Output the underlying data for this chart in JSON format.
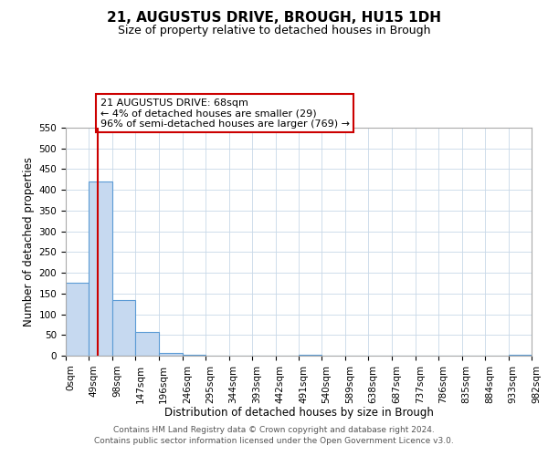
{
  "title": "21, AUGUSTUS DRIVE, BROUGH, HU15 1DH",
  "subtitle": "Size of property relative to detached houses in Brough",
  "xlabel": "Distribution of detached houses by size in Brough",
  "ylabel": "Number of detached properties",
  "bin_edges": [
    0,
    49,
    98,
    147,
    196,
    246,
    295,
    344,
    393,
    442,
    491,
    540,
    589,
    638,
    687,
    737,
    786,
    835,
    884,
    933,
    982
  ],
  "bin_labels": [
    "0sqm",
    "49sqm",
    "98sqm",
    "147sqm",
    "196sqm",
    "246sqm",
    "295sqm",
    "344sqm",
    "393sqm",
    "442sqm",
    "491sqm",
    "540sqm",
    "589sqm",
    "638sqm",
    "687sqm",
    "737sqm",
    "786sqm",
    "835sqm",
    "884sqm",
    "933sqm",
    "982sqm"
  ],
  "counts": [
    175,
    420,
    135,
    57,
    7,
    3,
    0,
    0,
    0,
    0,
    2,
    0,
    0,
    1,
    0,
    0,
    0,
    0,
    0,
    2
  ],
  "bar_color": "#c6d9f0",
  "bar_edge_color": "#5b9bd5",
  "property_line_x": 68,
  "property_line_color": "#cc0000",
  "ylim": [
    0,
    550
  ],
  "yticks": [
    0,
    50,
    100,
    150,
    200,
    250,
    300,
    350,
    400,
    450,
    500,
    550
  ],
  "annotation_title": "21 AUGUSTUS DRIVE: 68sqm",
  "annotation_line1": "← 4% of detached houses are smaller (29)",
  "annotation_line2": "96% of semi-detached houses are larger (769) →",
  "annotation_box_color": "#ffffff",
  "annotation_box_edge": "#cc0000",
  "footer_line1": "Contains HM Land Registry data © Crown copyright and database right 2024.",
  "footer_line2": "Contains public sector information licensed under the Open Government Licence v3.0.",
  "title_fontsize": 11,
  "subtitle_fontsize": 9,
  "axis_label_fontsize": 8.5,
  "tick_fontsize": 7.5,
  "annotation_fontsize": 8,
  "footer_fontsize": 6.5
}
